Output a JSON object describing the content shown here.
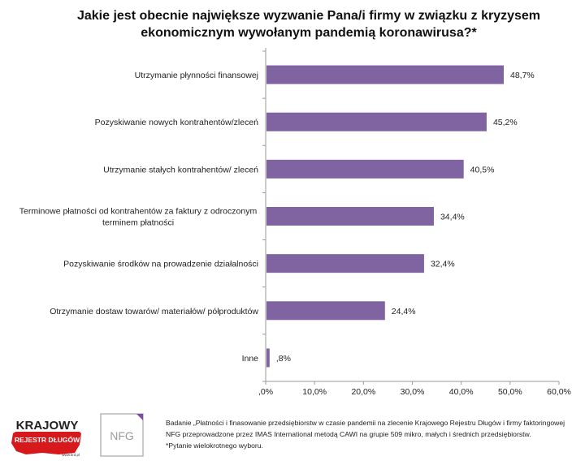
{
  "title": {
    "line1": "Jakie jest obecnie największe wyzwanie Pana/i firmy w związku z kryzysem",
    "line2": "ekonomicznym wywołanym pandemią koronawirusa?*"
  },
  "chart_data": {
    "type": "bar",
    "orientation": "horizontal",
    "categories": [
      [
        "Utrzymanie płynności finansowej"
      ],
      [
        "Pozyskiwanie nowych kontrahentów/zleceń"
      ],
      [
        "Utrzymanie stałych kontrahentów/ zleceń"
      ],
      [
        "Terminowe płatności od kontrahentów za faktury z odroczonym",
        "terminem płatności"
      ],
      [
        "Pozyskiwanie środków na prowadzenie działalności"
      ],
      [
        "Otrzymanie dostaw towarów/ materiałów/ półproduktów"
      ],
      [
        "Inne"
      ]
    ],
    "values": [
      48.7,
      45.2,
      40.5,
      34.4,
      32.4,
      24.4,
      0.8
    ],
    "value_labels": [
      "48,7%",
      "45,2%",
      "40,5%",
      "34,4%",
      "32,4%",
      "24,4%",
      ",8%"
    ],
    "xlim": [
      0,
      60
    ],
    "ticks": [
      0,
      10,
      20,
      30,
      40,
      50,
      60
    ],
    "tick_labels": [
      ",0%",
      "10,0%",
      "20,0%",
      "30,0%",
      "40,0%",
      "50,0%",
      "60,0%"
    ],
    "bar_color": "#8064a2",
    "grid": false,
    "legend": "none"
  },
  "footer": {
    "logo_krd": {
      "line1": "KRAJOWY",
      "line2": "REJESTR DŁUGÓW",
      "url": "www.krd.pl"
    },
    "logo_nfg": "NFG",
    "note_line1": "Badanie „Płatności i finasowanie przedsiębiorstw w czasie pandemii na zlecenie Krajowego Rejestru Długów i firmy faktoringowej",
    "note_line2": "NFG przeprowadzone przez IMAS International metodą CAWI na grupie 509 mikro, małych i średnich przedsiębiorstw.",
    "note_line3": "*Pytanie wielokrotnego wyboru."
  },
  "colors": {
    "bar": "#8064a2",
    "krd_red": "#d7191c",
    "nfg_accent": "#7b4fa0"
  }
}
